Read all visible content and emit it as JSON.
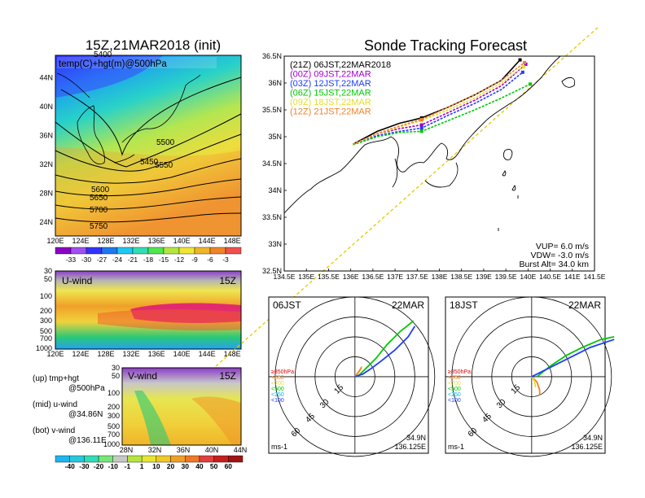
{
  "title_left": "15Z,21MAR2018 (init)",
  "title_right": "Sonde Tracking Forecast",
  "colors": {
    "purple": "#a000c8",
    "blue": "#1e3cff",
    "green": "#00c800",
    "yellow": "#e6dc32",
    "orange": "#f08228",
    "black": "#000000",
    "track_line": "#e6c800"
  },
  "chart_data": [
    {
      "type": "heatmap",
      "id": "upper-map",
      "label": "temp(C)+hgt(m)@500hPa",
      "x_ticks": [
        "120E",
        "124E",
        "128E",
        "132E",
        "136E",
        "140E",
        "144E",
        "148E"
      ],
      "y_ticks": [
        "24N",
        "28N",
        "32N",
        "36N",
        "40N",
        "44N"
      ],
      "contour_labels": [
        "5400",
        "5450",
        "5500",
        "5550",
        "5600",
        "5650",
        "5700",
        "5750"
      ],
      "colorbar_labels": [
        "-33",
        "-30",
        "-27",
        "-24",
        "-21",
        "-18",
        "-15",
        "-12",
        "-9",
        "-6",
        "-3"
      ]
    },
    {
      "type": "heatmap",
      "id": "u-wind",
      "label": "U-wind",
      "time": "15Z",
      "x_ticks": [
        "120E",
        "124E",
        "128E",
        "132E",
        "136E",
        "140E",
        "144E",
        "148E"
      ],
      "y_ticks": [
        "30",
        "50",
        "100",
        "200",
        "300",
        "500",
        "700",
        "1000"
      ]
    },
    {
      "type": "heatmap",
      "id": "v-wind",
      "label": "V-wind",
      "time": "15Z",
      "x_ticks": [
        "28N",
        "32N",
        "36N",
        "40N",
        "44N"
      ],
      "y_ticks": [
        "30",
        "50",
        "100",
        "200",
        "300",
        "500",
        "700",
        "1000"
      ],
      "colorbar_labels": [
        "-40",
        "-30",
        "-20",
        "-10",
        "-1",
        "1",
        "10",
        "20",
        "30",
        "40",
        "50",
        "60"
      ]
    },
    {
      "type": "line",
      "id": "track-map",
      "x_ticks": [
        "134.5E",
        "135E",
        "135.5E",
        "136E",
        "136.5E",
        "137E",
        "137.5E",
        "138E",
        "138.5E",
        "139E",
        "139.5E",
        "140E",
        "140.5E",
        "141E",
        "141.5E"
      ],
      "y_ticks": [
        "32.5N",
        "33N",
        "33.5N",
        "34N",
        "34.5N",
        "35N",
        "35.5N",
        "36N",
        "36.5N"
      ],
      "xlim": [
        134.5,
        141.5
      ],
      "ylim": [
        32.5,
        36.5
      ],
      "series": [
        {
          "name": "(21Z)  06JST,22MAR2018",
          "color": "#000000",
          "x": [
            136.05,
            136.6,
            137.1,
            137.6,
            138.2,
            138.8,
            139.4,
            139.82
          ],
          "y": [
            34.86,
            35.1,
            35.25,
            35.35,
            35.55,
            35.78,
            36.05,
            36.43
          ]
        },
        {
          "name": "(00Z)  09JST,22MAR",
          "color": "#a000c8",
          "x": [
            136.05,
            136.6,
            137.1,
            137.6,
            138.2,
            138.8,
            139.4,
            139.95
          ],
          "y": [
            34.86,
            35.05,
            35.15,
            35.22,
            35.45,
            35.68,
            35.95,
            36.35
          ]
        },
        {
          "name": "(03Z)  12JST,22MAR",
          "color": "#1e3cff",
          "x": [
            136.05,
            136.6,
            137.1,
            137.6,
            138.2,
            138.8,
            139.4,
            139.88
          ],
          "y": [
            34.86,
            35.02,
            35.1,
            35.16,
            35.4,
            35.62,
            35.88,
            36.2
          ]
        },
        {
          "name": "(06Z)  15JST,22MAR",
          "color": "#00c800",
          "x": [
            136.05,
            136.6,
            137.1,
            137.6,
            138.2,
            138.8,
            139.4,
            140.05
          ],
          "y": [
            34.85,
            35.0,
            35.08,
            35.1,
            35.3,
            35.5,
            35.72,
            35.98
          ]
        },
        {
          "name": "(09Z)  18JST,22MAR",
          "color": "#e6dc32",
          "x": [
            136.05,
            136.6,
            137.1,
            137.6,
            138.2,
            138.8,
            139.4,
            139.9
          ],
          "y": [
            34.86,
            35.05,
            35.18,
            35.3,
            35.5,
            35.72,
            36.0,
            36.3
          ]
        },
        {
          "name": "(12Z)  21JST,22MAR",
          "color": "#f08228",
          "x": [
            136.05,
            136.6,
            137.1,
            137.6,
            138.2,
            138.8,
            139.4,
            139.92
          ],
          "y": [
            34.86,
            35.06,
            35.2,
            35.32,
            35.55,
            35.78,
            36.05,
            36.38
          ]
        }
      ],
      "params": {
        "vup": "VUP=  6.0 m/s",
        "vdw": "VDW= -3.0 m/s",
        "burst": "Burst Alt=  34.0 km"
      }
    },
    {
      "type": "line",
      "id": "hodo-06",
      "label_left": "06JST",
      "label_right": "22MAR",
      "unit": "ms-1",
      "ring_labels": [
        "15",
        "30",
        "45",
        "60"
      ],
      "legend": [
        "≥850hPa",
        "<850",
        "<700",
        "<500",
        "<250",
        "<100"
      ],
      "legend_colors": [
        "#e00000",
        "#f08228",
        "#e6dc32",
        "#00c800",
        "#00b4e6",
        "#1e3cff"
      ],
      "lat": "34.9N",
      "lon": "136.125E",
      "series": [
        {
          "color": "#e6dc32",
          "u": [
            0,
            2,
            4,
            5
          ],
          "v": [
            0,
            2,
            5,
            8
          ]
        },
        {
          "color": "#f08228",
          "u": [
            0,
            3,
            5
          ],
          "v": [
            0,
            4,
            7
          ]
        },
        {
          "color": "#00c800",
          "u": [
            2,
            8,
            16,
            24,
            34,
            44
          ],
          "v": [
            0,
            6,
            14,
            24,
            34,
            42
          ]
        },
        {
          "color": "#1e3cff",
          "u": [
            0,
            6,
            12,
            20,
            30,
            40,
            45
          ],
          "v": [
            0,
            2,
            6,
            12,
            20,
            30,
            38
          ]
        }
      ]
    },
    {
      "type": "line",
      "id": "hodo-18",
      "label_left": "18JST",
      "label_right": "22MAR",
      "unit": "ms-1",
      "ring_labels": [
        "15",
        "30",
        "45",
        "60"
      ],
      "legend": [
        "≥850hPa",
        "<850",
        "<700",
        "<500",
        "<250",
        "<100"
      ],
      "legend_colors": [
        "#e00000",
        "#f08228",
        "#e6dc32",
        "#00c800",
        "#00b4e6",
        "#1e3cff"
      ],
      "lat": "34.9N",
      "lon": "136.125E",
      "series": [
        {
          "color": "#f08228",
          "u": [
            0,
            4,
            6,
            6
          ],
          "v": [
            0,
            -4,
            -10,
            -14
          ]
        },
        {
          "color": "#e6dc32",
          "u": [
            0,
            2,
            3
          ],
          "v": [
            0,
            -3,
            -8
          ]
        },
        {
          "color": "#00c800",
          "u": [
            4,
            14,
            26,
            38,
            52,
            62
          ],
          "v": [
            0,
            8,
            16,
            22,
            28,
            30
          ]
        },
        {
          "color": "#1e3cff",
          "u": [
            0,
            8,
            20,
            32,
            44,
            56,
            62
          ],
          "v": [
            0,
            4,
            10,
            16,
            22,
            26,
            28
          ]
        }
      ]
    }
  ],
  "bottom_legend": {
    "up": "(up)  tmp+hgt",
    "up2": "@500hPa",
    "mid": "(mid)  u-wind",
    "mid2": "@34.86N",
    "bot": "(bot)  v-wind",
    "bot2": "@136.11E"
  }
}
